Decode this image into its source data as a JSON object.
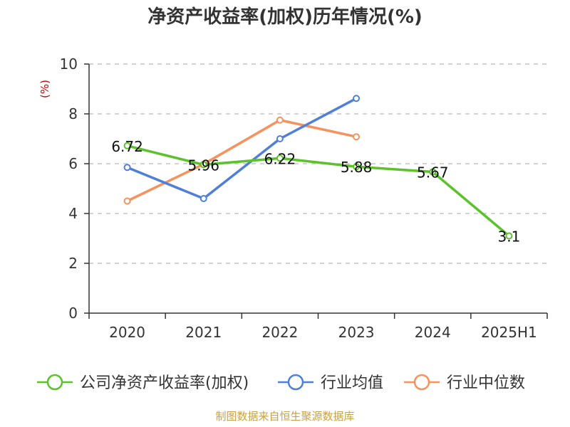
{
  "chart_data": {
    "type": "line",
    "title": "净资产收益率(加权)历年情况(%)",
    "ylabel": "(%)",
    "categories": [
      "2020",
      "2021",
      "2022",
      "2023",
      "2024",
      "2025H1"
    ],
    "ylim": [
      0,
      10
    ],
    "yticks": [
      0,
      2,
      4,
      6,
      8,
      10
    ],
    "grid": true,
    "legend_position": "bottom",
    "series": [
      {
        "name": "公司净资产收益率(加权)",
        "color": "#5bc22a",
        "values": [
          6.72,
          5.96,
          6.22,
          5.88,
          5.67,
          3.1
        ],
        "labels": [
          "6.72",
          "5.96",
          "6.22",
          "5.88",
          "5.67",
          "3.1"
        ]
      },
      {
        "name": "行业均值",
        "color": "#4f7fd8",
        "values": [
          5.85,
          4.6,
          7.0,
          8.62,
          null,
          null
        ]
      },
      {
        "name": "行业中位数",
        "color": "#f5925e",
        "values": [
          4.5,
          5.98,
          7.75,
          7.08,
          null,
          null
        ]
      }
    ]
  },
  "source": "制图数据来自恒生聚源数据库"
}
